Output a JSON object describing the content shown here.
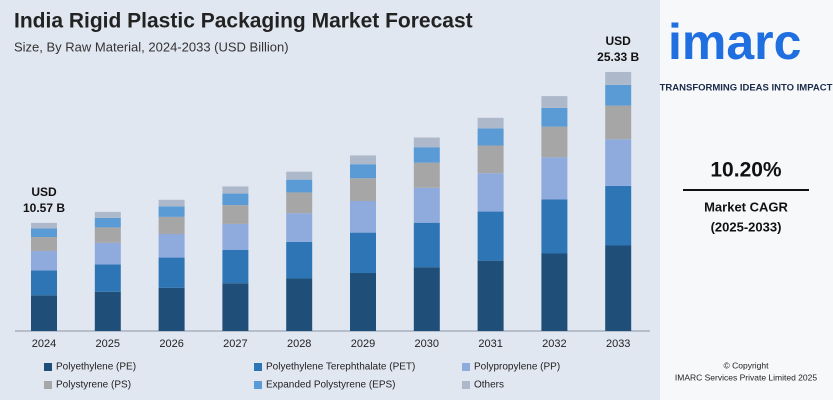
{
  "chart_data": {
    "type": "stacked-bar",
    "title": "India Rigid Plastic Packaging Market Forecast",
    "subtitle": "Size, By Raw Material, 2024-2033 (USD Billion)",
    "categories": [
      "2024",
      "2025",
      "2026",
      "2027",
      "2028",
      "2029",
      "2030",
      "2031",
      "2032",
      "2033"
    ],
    "series": [
      {
        "name": "Polyethylene (PE)",
        "color": "#1f4e79",
        "values": [
          3.49,
          3.84,
          4.23,
          4.67,
          5.14,
          5.67,
          6.24,
          6.88,
          7.58,
          8.36
        ]
      },
      {
        "name": "Polyethylene Terephthalate (PET)",
        "color": "#2e75b6",
        "values": [
          2.43,
          2.68,
          2.95,
          3.25,
          3.58,
          3.95,
          4.35,
          4.8,
          5.28,
          5.83
        ]
      },
      {
        "name": "Polypropylene (PP)",
        "color": "#8faadc",
        "values": [
          1.9,
          2.1,
          2.31,
          2.55,
          2.8,
          3.09,
          3.41,
          3.75,
          4.13,
          4.56
        ]
      },
      {
        "name": "Polystyrene (PS)",
        "color": "#a6a6a6",
        "values": [
          1.37,
          1.51,
          1.67,
          1.84,
          2.03,
          2.23,
          2.46,
          2.71,
          2.99,
          3.29
        ]
      },
      {
        "name": "Expanded Polystyrene (EPS)",
        "color": "#5b9bd5",
        "values": [
          0.85,
          0.93,
          1.03,
          1.13,
          1.25,
          1.37,
          1.51,
          1.67,
          1.84,
          2.03
        ]
      },
      {
        "name": "Others",
        "color": "#adb9ca",
        "values": [
          0.53,
          0.59,
          0.64,
          0.7,
          0.78,
          0.86,
          0.95,
          1.04,
          1.15,
          1.26
        ]
      }
    ],
    "ylim": [
      0,
      26.5
    ],
    "annotations": [
      {
        "category": "2024",
        "text": [
          "USD",
          "10.57 B"
        ]
      },
      {
        "category": "2033",
        "text": [
          "USD",
          "25.33 B"
        ]
      }
    ]
  },
  "brand": {
    "logo": "imarc",
    "tagline": "TRANSFORMING IDEAS INTO IMPACT"
  },
  "cagr": {
    "value": "10.20%",
    "label": "Market CAGR",
    "period": "(2025-2033)"
  },
  "copyright": [
    "© Copyright",
    "IMARC Services Private Limited 2025"
  ]
}
